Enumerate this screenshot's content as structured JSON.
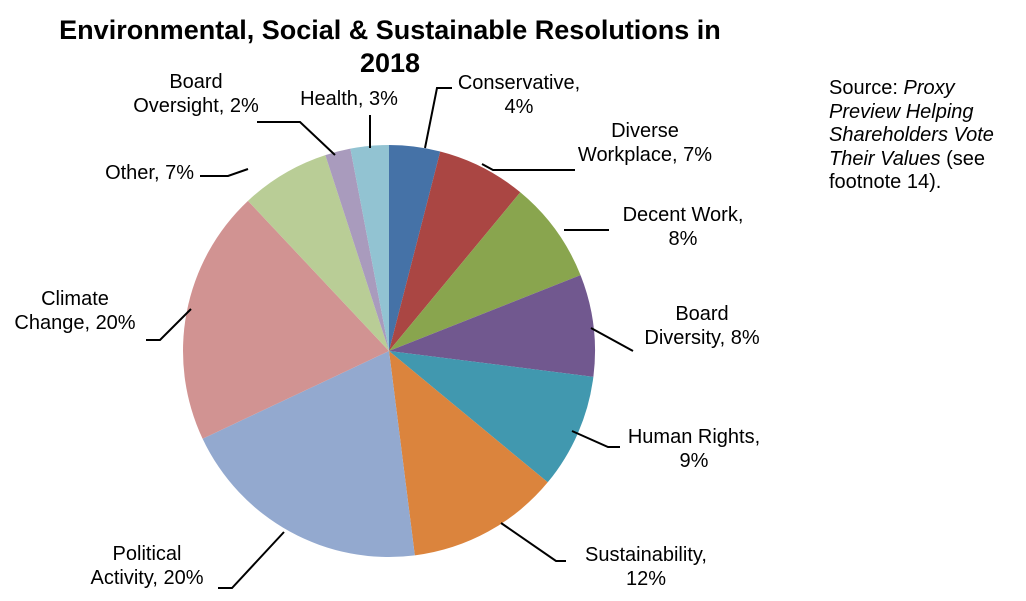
{
  "chart_data": {
    "type": "pie",
    "title_lines": [
      "Environmental, Social & Sustainable Resolutions in",
      "2018"
    ],
    "slices": [
      {
        "name": "Conservative",
        "value": 4,
        "label_lines": [
          "Conservative,",
          "4%"
        ],
        "color": "#4572a7"
      },
      {
        "name": "Diverse Workplace",
        "value": 7,
        "label_lines": [
          "Diverse",
          "Workplace, 7%"
        ],
        "color": "#aa4643"
      },
      {
        "name": "Decent Work",
        "value": 8,
        "label_lines": [
          "Decent Work,",
          "8%"
        ],
        "color": "#89a54e"
      },
      {
        "name": "Board Diversity",
        "value": 8,
        "label_lines": [
          "Board",
          "Diversity, 8%"
        ],
        "color": "#71588f"
      },
      {
        "name": "Human Rights",
        "value": 9,
        "label_lines": [
          "Human Rights,",
          "9%"
        ],
        "color": "#4198af"
      },
      {
        "name": "Sustainability",
        "value": 12,
        "label_lines": [
          "Sustainability,",
          "12%"
        ],
        "color": "#db843d"
      },
      {
        "name": "Political Activity",
        "value": 20,
        "label_lines": [
          "Political",
          "Activity, 20%"
        ],
        "color": "#93a9cf"
      },
      {
        "name": "Climate Change",
        "value": 20,
        "label_lines": [
          "Climate",
          "Change, 20%"
        ],
        "color": "#d19392"
      },
      {
        "name": "Other",
        "value": 7,
        "label_lines": [
          "Other, 7%"
        ],
        "color": "#b9cd96"
      },
      {
        "name": "Board Oversight",
        "value": 2,
        "label_lines": [
          "Board",
          "Oversight, 2%"
        ],
        "color": "#a99bbd"
      },
      {
        "name": "Health",
        "value": 3,
        "label_lines": [
          "Health, 3%"
        ],
        "color": "#92c3d2"
      }
    ]
  },
  "source": {
    "prefix": "Source: ",
    "title": "Proxy Preview Helping Shareholders Vote Their Values",
    "suffix": " (see footnote 14)."
  }
}
